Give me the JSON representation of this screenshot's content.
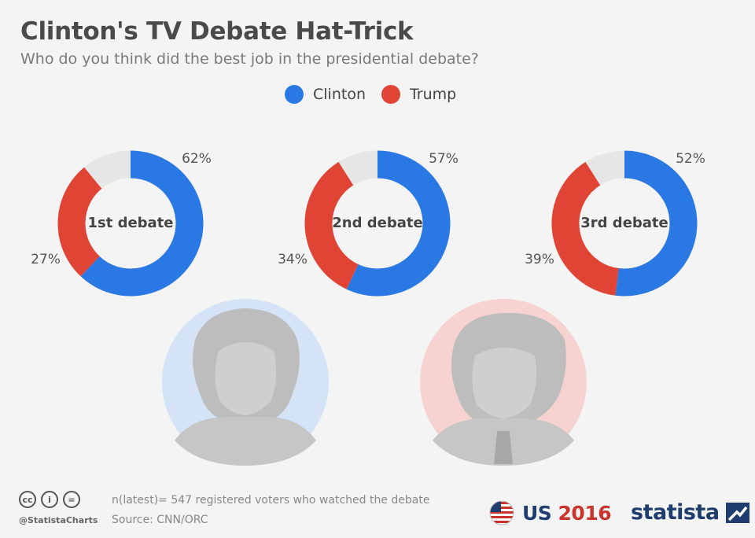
{
  "title": "Clinton's TV Debate Hat-Trick",
  "subtitle": "Who do you think did the best job in the presidential debate?",
  "legend": [
    {
      "name": "Clinton",
      "color": "#2a78e4"
    },
    {
      "name": "Trump",
      "color": "#e04434"
    }
  ],
  "colors": {
    "clinton": "#2a78e4",
    "trump": "#e04434",
    "other": "#e6e6e6"
  },
  "chart_data": [
    {
      "type": "pie",
      "title": "1st debate",
      "series": [
        {
          "name": "Clinton",
          "value": 62
        },
        {
          "name": "Trump",
          "value": 27
        }
      ],
      "labels": [
        "62%",
        "27%"
      ]
    },
    {
      "type": "pie",
      "title": "2nd debate",
      "series": [
        {
          "name": "Clinton",
          "value": 57
        },
        {
          "name": "Trump",
          "value": 34
        }
      ],
      "labels": [
        "57%",
        "34%"
      ]
    },
    {
      "type": "pie",
      "title": "3rd debate",
      "series": [
        {
          "name": "Clinton",
          "value": 52
        },
        {
          "name": "Trump",
          "value": 39
        }
      ],
      "labels": [
        "52%",
        "39%"
      ]
    }
  ],
  "footer": {
    "handle": "@StatistaCharts",
    "note": "n(latest)= 547 registered voters who watched the debate",
    "source": "Source: CNN/ORC",
    "us_badge": {
      "us": "US",
      "year": "2016"
    },
    "brand": "statista",
    "cc_icons": [
      "cc",
      "i",
      "="
    ]
  }
}
